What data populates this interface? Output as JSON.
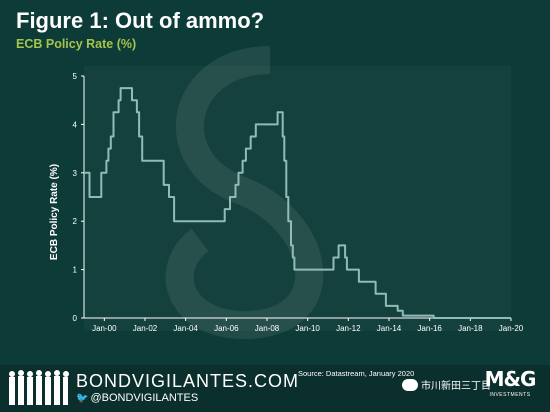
{
  "header": {
    "title": "Figure 1: Out of ammo?",
    "subtitle": "ECB Policy Rate (%)"
  },
  "footer": {
    "brand": "BONDVIGILANTES.COM",
    "handle": "@BONDVIGILANTES",
    "source": "Source: Datastream, January 2020",
    "wechat": "市川新田三丁目",
    "logo": "M&G",
    "logo_sub": "INVESTMENTS"
  },
  "colors": {
    "background": "#0d3b38",
    "plot_area": "#ffffff",
    "line": "#8fbcb9",
    "accent": "#a6c44a"
  },
  "chart_data": {
    "type": "line",
    "ylabel": "ECB Policy Rate (%)",
    "xlabel": "",
    "ylim": [
      0,
      5
    ],
    "yticks": [
      0,
      1,
      2,
      3,
      4,
      5
    ],
    "xlim": [
      1999.0,
      2020.0
    ],
    "xticks": [
      {
        "value": 2000.0,
        "label": "Jan-00"
      },
      {
        "value": 2002.0,
        "label": "Jan-02"
      },
      {
        "value": 2004.0,
        "label": "Jan-04"
      },
      {
        "value": 2006.0,
        "label": "Jan-06"
      },
      {
        "value": 2008.0,
        "label": "Jan-08"
      },
      {
        "value": 2010.0,
        "label": "Jan-10"
      },
      {
        "value": 2012.0,
        "label": "Jan-12"
      },
      {
        "value": 2014.0,
        "label": "Jan-14"
      },
      {
        "value": 2016.0,
        "label": "Jan-16"
      },
      {
        "value": 2018.0,
        "label": "Jan-18"
      },
      {
        "value": 2020.0,
        "label": "Jan-20"
      }
    ],
    "grid": false,
    "series": [
      {
        "name": "",
        "points": [
          [
            1999.0,
            3.0
          ],
          [
            1999.27,
            3.0
          ],
          [
            1999.27,
            2.5
          ],
          [
            1999.85,
            2.5
          ],
          [
            1999.85,
            3.0
          ],
          [
            2000.1,
            3.0
          ],
          [
            2000.1,
            3.25
          ],
          [
            2000.2,
            3.25
          ],
          [
            2000.2,
            3.5
          ],
          [
            2000.32,
            3.5
          ],
          [
            2000.32,
            3.75
          ],
          [
            2000.45,
            3.75
          ],
          [
            2000.45,
            4.25
          ],
          [
            2000.7,
            4.25
          ],
          [
            2000.7,
            4.5
          ],
          [
            2000.8,
            4.5
          ],
          [
            2000.8,
            4.75
          ],
          [
            2001.36,
            4.75
          ],
          [
            2001.36,
            4.5
          ],
          [
            2001.6,
            4.5
          ],
          [
            2001.6,
            4.25
          ],
          [
            2001.71,
            4.25
          ],
          [
            2001.71,
            3.75
          ],
          [
            2001.86,
            3.75
          ],
          [
            2001.86,
            3.25
          ],
          [
            2002.92,
            3.25
          ],
          [
            2002.92,
            2.75
          ],
          [
            2003.18,
            2.75
          ],
          [
            2003.18,
            2.5
          ],
          [
            2003.43,
            2.5
          ],
          [
            2003.43,
            2.0
          ],
          [
            2005.92,
            2.0
          ],
          [
            2005.92,
            2.25
          ],
          [
            2006.18,
            2.25
          ],
          [
            2006.18,
            2.5
          ],
          [
            2006.45,
            2.5
          ],
          [
            2006.45,
            2.75
          ],
          [
            2006.6,
            2.75
          ],
          [
            2006.6,
            3.0
          ],
          [
            2006.8,
            3.0
          ],
          [
            2006.8,
            3.25
          ],
          [
            2006.96,
            3.25
          ],
          [
            2006.96,
            3.5
          ],
          [
            2007.2,
            3.5
          ],
          [
            2007.2,
            3.75
          ],
          [
            2007.45,
            3.75
          ],
          [
            2007.45,
            4.0
          ],
          [
            2008.52,
            4.0
          ],
          [
            2008.52,
            4.25
          ],
          [
            2008.77,
            4.25
          ],
          [
            2008.77,
            3.75
          ],
          [
            2008.85,
            3.75
          ],
          [
            2008.85,
            3.25
          ],
          [
            2008.95,
            3.25
          ],
          [
            2008.95,
            2.5
          ],
          [
            2009.05,
            2.5
          ],
          [
            2009.05,
            2.0
          ],
          [
            2009.18,
            2.0
          ],
          [
            2009.18,
            1.5
          ],
          [
            2009.27,
            1.5
          ],
          [
            2009.27,
            1.25
          ],
          [
            2009.35,
            1.25
          ],
          [
            2009.35,
            1.0
          ],
          [
            2011.27,
            1.0
          ],
          [
            2011.27,
            1.25
          ],
          [
            2011.52,
            1.25
          ],
          [
            2011.52,
            1.5
          ],
          [
            2011.84,
            1.5
          ],
          [
            2011.84,
            1.25
          ],
          [
            2011.93,
            1.25
          ],
          [
            2011.93,
            1.0
          ],
          [
            2012.52,
            1.0
          ],
          [
            2012.52,
            0.75
          ],
          [
            2013.34,
            0.75
          ],
          [
            2013.34,
            0.5
          ],
          [
            2013.85,
            0.5
          ],
          [
            2013.85,
            0.25
          ],
          [
            2014.43,
            0.25
          ],
          [
            2014.43,
            0.15
          ],
          [
            2014.68,
            0.15
          ],
          [
            2014.68,
            0.05
          ],
          [
            2016.2,
            0.05
          ],
          [
            2016.2,
            0.0
          ],
          [
            2020.0,
            0.0
          ]
        ]
      }
    ]
  }
}
